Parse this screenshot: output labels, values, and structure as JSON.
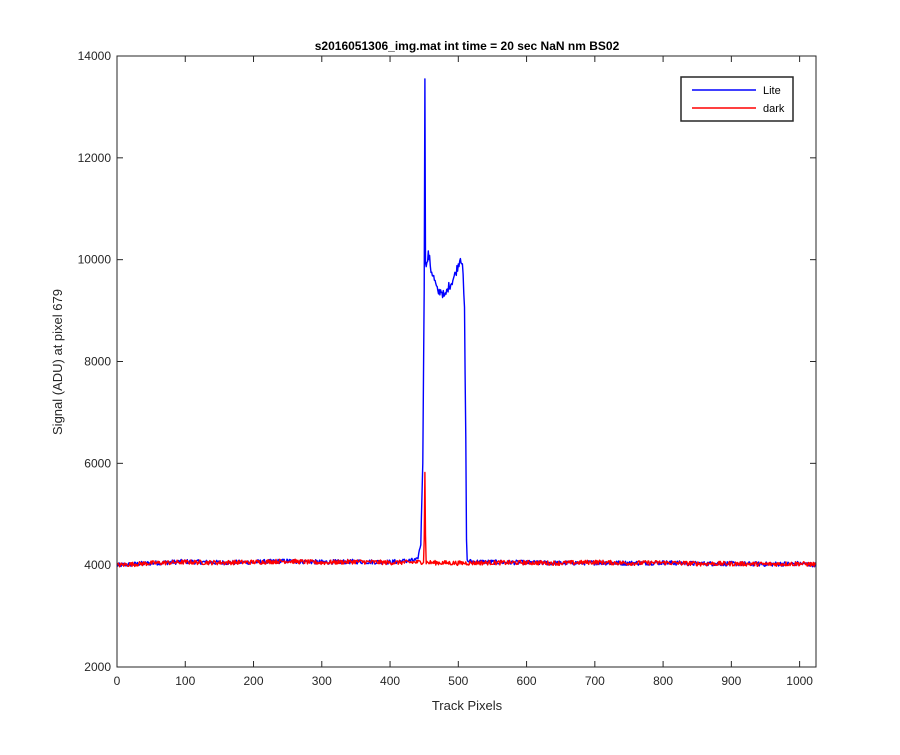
{
  "chart_data": {
    "type": "line",
    "title": "s2016051306_img.mat int time = 20 sec  NaN nm BS02",
    "xlabel": "Track Pixels",
    "ylabel": "Signal (ADU) at pixel 679",
    "xlim": [
      0,
      1024
    ],
    "ylim": [
      2000,
      14000
    ],
    "xticks": [
      0,
      100,
      200,
      300,
      400,
      500,
      600,
      700,
      800,
      900,
      1000
    ],
    "yticks": [
      2000,
      4000,
      6000,
      8000,
      10000,
      12000,
      14000
    ],
    "grid": false,
    "legend_position": "top-right",
    "series": [
      {
        "name": "Lite",
        "color": "#0000ff",
        "x": [
          0,
          50,
          100,
          150,
          200,
          250,
          300,
          350,
          400,
          440,
          445,
          448,
          450,
          451,
          452,
          454,
          456,
          458,
          460,
          463,
          466,
          470,
          475,
          480,
          485,
          490,
          495,
          500,
          503,
          506,
          509,
          511,
          512,
          513,
          520,
          550,
          600,
          650,
          700,
          750,
          800,
          850,
          900,
          950,
          1000,
          1024
        ],
        "y": [
          4000,
          4040,
          4070,
          4050,
          4060,
          4080,
          4060,
          4070,
          4060,
          4100,
          4400,
          6000,
          9500,
          13550,
          10000,
          9900,
          10100,
          10000,
          9800,
          9700,
          9550,
          9350,
          9400,
          9250,
          9450,
          9550,
          9700,
          9900,
          10050,
          9950,
          9000,
          6500,
          4500,
          4080,
          4070,
          4060,
          4050,
          4040,
          4050,
          4040,
          4050,
          4030,
          4030,
          4020,
          4030,
          4010
        ]
      },
      {
        "name": "dark",
        "color": "#ff0000",
        "x": [
          0,
          50,
          100,
          150,
          200,
          250,
          300,
          350,
          400,
          445,
          449,
          450,
          451,
          452,
          453,
          455,
          460,
          500,
          550,
          600,
          650,
          700,
          750,
          800,
          850,
          900,
          950,
          1000,
          1024
        ],
        "y": [
          4000,
          4040,
          4060,
          4050,
          4060,
          4080,
          4050,
          4070,
          4050,
          4060,
          4070,
          4500,
          5820,
          4600,
          4060,
          4050,
          4050,
          4040,
          4050,
          4050,
          4040,
          4060,
          4040,
          4050,
          4030,
          4030,
          4020,
          4030,
          4010
        ]
      }
    ]
  }
}
